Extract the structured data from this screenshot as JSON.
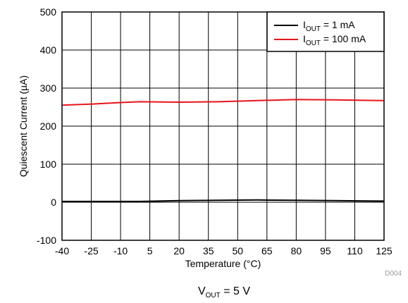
{
  "figure_id": "D004",
  "caption": {
    "main": "V",
    "sub": "OUT",
    "rest": " = 5 V"
  },
  "chart_data": {
    "type": "line",
    "title": "",
    "xlabel": "Temperature (°C)",
    "ylabel": "Quiescent Current (µA)",
    "xlim": [
      -40,
      125
    ],
    "ylim": [
      -100,
      500
    ],
    "xticks": [
      -40,
      -25,
      -10,
      5,
      20,
      35,
      50,
      65,
      80,
      95,
      110,
      125
    ],
    "yticks": [
      -100,
      0,
      100,
      200,
      300,
      400,
      500
    ],
    "grid": true,
    "legend_position": "top-right",
    "series": [
      {
        "name": "IOUT = 1 mA",
        "label_main": "I",
        "label_sub": "OUT",
        "label_rest": " = 1 mA",
        "color": "#000000",
        "x": [
          -40,
          -25,
          -10,
          0,
          20,
          40,
          60,
          80,
          100,
          125
        ],
        "y": [
          2,
          2,
          2,
          2,
          4,
          5,
          6,
          5,
          4,
          3
        ]
      },
      {
        "name": "IOUT = 100 mA",
        "label_main": "I",
        "label_sub": "OUT",
        "label_rest": " = 100 mA",
        "color": "#e8141b",
        "x": [
          -40,
          -25,
          -10,
          0,
          20,
          40,
          60,
          80,
          100,
          125
        ],
        "y": [
          255,
          258,
          262,
          264,
          263,
          264,
          267,
          270,
          269,
          267
        ]
      }
    ]
  }
}
